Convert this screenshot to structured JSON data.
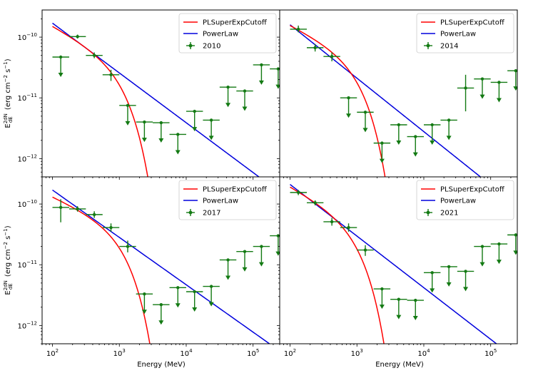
{
  "colors": {
    "cutoff": "#ff0000",
    "powerlaw": "#0000dd",
    "data": "#137a13"
  },
  "x_label": "Energy (MeV)",
  "y_label_main": "E",
  "y_label_sup": "2dN",
  "y_label_sub": "dE",
  "y_label_unit_parts": [
    "(erg cm",
    "−2",
    " s",
    "−1",
    ")"
  ],
  "x_ticks": [
    {
      "base": "10",
      "exp": "2",
      "value": 100
    },
    {
      "base": "10",
      "exp": "3",
      "value": 1000
    },
    {
      "base": "10",
      "exp": "4",
      "value": 10000
    },
    {
      "base": "10",
      "exp": "5",
      "value": 100000
    }
  ],
  "y_ticks": [
    {
      "base": "10",
      "exp": "−12",
      "value": 1e-12
    },
    {
      "base": "10",
      "exp": "−11",
      "value": 1e-11
    },
    {
      "base": "10",
      "exp": "−10",
      "value": 1e-10
    }
  ],
  "chart_data": [
    {
      "type": "scatter",
      "panel": "top-left",
      "x_scale": "log",
      "y_scale": "log",
      "xlim": [
        70,
        250000
      ],
      "ylim": [
        5e-13,
        2.8e-10
      ],
      "legend": {
        "placement": "top-right",
        "entries": [
          "PLSuperExpCutoff",
          "PowerLaw",
          "2010"
        ]
      },
      "curves": {
        "cutoff": {
          "prefactor": 1.5e-10,
          "index": 0.6,
          "cutoff": 1100,
          "exp_index": 1.5
        },
        "powerlaw": {
          "prefactor": 1.7e-10,
          "index": 0.82
        }
      },
      "points": [
        {
          "x": 133,
          "x_lo": 100,
          "x_hi": 178,
          "y": 4.7e-11,
          "ul": true
        },
        {
          "x": 237,
          "x_lo": 178,
          "x_hi": 316,
          "y": 1.02e-10,
          "ul": false,
          "y_lo": 9.5e-11,
          "y_hi": 1.1e-10
        },
        {
          "x": 422,
          "x_lo": 316,
          "x_hi": 562,
          "y": 5e-11,
          "ul": false,
          "y_lo": 4.5e-11,
          "y_hi": 5.6e-11
        },
        {
          "x": 750,
          "x_lo": 562,
          "x_hi": 1000,
          "y": 2.4e-11,
          "ul": false,
          "y_lo": 1.9e-11,
          "y_hi": 2.9e-11
        },
        {
          "x": 1334,
          "x_lo": 1000,
          "x_hi": 1778,
          "y": 7.5e-12,
          "ul": true
        },
        {
          "x": 2371,
          "x_lo": 1778,
          "x_hi": 3162,
          "y": 4e-12,
          "ul": true
        },
        {
          "x": 4217,
          "x_lo": 3162,
          "x_hi": 5623,
          "y": 3.9e-12,
          "ul": true
        },
        {
          "x": 7499,
          "x_lo": 5623,
          "x_hi": 10000,
          "y": 2.5e-12,
          "ul": true
        },
        {
          "x": 13335,
          "x_lo": 10000,
          "x_hi": 17783,
          "y": 6e-12,
          "ul": true
        },
        {
          "x": 23714,
          "x_lo": 17783,
          "x_hi": 31623,
          "y": 4.3e-12,
          "ul": true
        },
        {
          "x": 42170,
          "x_lo": 31623,
          "x_hi": 56234,
          "y": 1.5e-11,
          "ul": true
        },
        {
          "x": 74989,
          "x_lo": 56234,
          "x_hi": 100000,
          "y": 1.3e-11,
          "ul": true
        },
        {
          "x": 133352,
          "x_lo": 100000,
          "x_hi": 177828,
          "y": 3.5e-11,
          "ul": true
        },
        {
          "x": 237137,
          "x_lo": 177828,
          "x_hi": 316228,
          "y": 3e-11,
          "ul": true
        }
      ]
    },
    {
      "type": "scatter",
      "panel": "top-right",
      "x_scale": "log",
      "y_scale": "log",
      "xlim": [
        70,
        250000
      ],
      "ylim": [
        5e-13,
        2.8e-10
      ],
      "legend": {
        "placement": "top-right",
        "entries": [
          "PLSuperExpCutoff",
          "PowerLaw",
          "2014"
        ]
      },
      "curves": {
        "cutoff": {
          "prefactor": 1.55e-10,
          "index": 0.55,
          "cutoff": 1050,
          "exp_index": 1.5
        },
        "powerlaw": {
          "prefactor": 1.6e-10,
          "index": 0.88
        }
      },
      "points": [
        {
          "x": 133,
          "x_lo": 100,
          "x_hi": 178,
          "y": 1.35e-10,
          "ul": false,
          "y_lo": 1.2e-10,
          "y_hi": 1.55e-10
        },
        {
          "x": 237,
          "x_lo": 178,
          "x_hi": 316,
          "y": 6.7e-11,
          "ul": false,
          "y_lo": 5.8e-11,
          "y_hi": 7.7e-11
        },
        {
          "x": 422,
          "x_lo": 316,
          "x_hi": 562,
          "y": 4.8e-11,
          "ul": false,
          "y_lo": 4e-11,
          "y_hi": 5.6e-11
        },
        {
          "x": 750,
          "x_lo": 562,
          "x_hi": 1000,
          "y": 1e-11,
          "ul": true
        },
        {
          "x": 1334,
          "x_lo": 1000,
          "x_hi": 1778,
          "y": 5.8e-12,
          "ul": true
        },
        {
          "x": 2371,
          "x_lo": 1778,
          "x_hi": 3162,
          "y": 1.8e-12,
          "ul": true
        },
        {
          "x": 4217,
          "x_lo": 3162,
          "x_hi": 5623,
          "y": 3.6e-12,
          "ul": true
        },
        {
          "x": 7499,
          "x_lo": 5623,
          "x_hi": 10000,
          "y": 2.3e-12,
          "ul": true
        },
        {
          "x": 13335,
          "x_lo": 10000,
          "x_hi": 17783,
          "y": 3.6e-12,
          "ul": true
        },
        {
          "x": 23714,
          "x_lo": 17783,
          "x_hi": 31623,
          "y": 4.3e-12,
          "ul": true
        },
        {
          "x": 42170,
          "x_lo": 31623,
          "x_hi": 56234,
          "y": 1.45e-11,
          "ul": false,
          "y_lo": 6e-12,
          "y_hi": 2.4e-11
        },
        {
          "x": 74989,
          "x_lo": 56234,
          "x_hi": 100000,
          "y": 2.05e-11,
          "ul": true
        },
        {
          "x": 133352,
          "x_lo": 100000,
          "x_hi": 177828,
          "y": 1.8e-11,
          "ul": true
        },
        {
          "x": 237137,
          "x_lo": 177828,
          "x_hi": 316228,
          "y": 2.8e-11,
          "ul": true
        }
      ]
    },
    {
      "type": "scatter",
      "panel": "bottom-left",
      "x_scale": "log",
      "y_scale": "log",
      "xlim": [
        70,
        250000
      ],
      "ylim": [
        5e-13,
        2.8e-10
      ],
      "legend": {
        "placement": "top-right",
        "entries": [
          "PLSuperExpCutoff",
          "PowerLaw",
          "2017"
        ]
      },
      "curves": {
        "cutoff": {
          "prefactor": 1.3e-10,
          "index": 0.5,
          "cutoff": 1150,
          "exp_index": 1.5
        },
        "powerlaw": {
          "prefactor": 1.7e-10,
          "index": 0.78
        }
      },
      "points": [
        {
          "x": 133,
          "x_lo": 100,
          "x_hi": 178,
          "y": 8.8e-11,
          "ul": false,
          "y_lo": 5e-11,
          "y_hi": 1.2e-10
        },
        {
          "x": 237,
          "x_lo": 178,
          "x_hi": 316,
          "y": 8.3e-11,
          "ul": false,
          "y_lo": 7.5e-11,
          "y_hi": 9.2e-11
        },
        {
          "x": 422,
          "x_lo": 316,
          "x_hi": 562,
          "y": 6.7e-11,
          "ul": false,
          "y_lo": 5.9e-11,
          "y_hi": 7.6e-11
        },
        {
          "x": 750,
          "x_lo": 562,
          "x_hi": 1000,
          "y": 4.1e-11,
          "ul": false,
          "y_lo": 3.5e-11,
          "y_hi": 4.8e-11
        },
        {
          "x": 1334,
          "x_lo": 1000,
          "x_hi": 1778,
          "y": 2e-11,
          "ul": false,
          "y_lo": 1.6e-11,
          "y_hi": 2.5e-11
        },
        {
          "x": 2371,
          "x_lo": 1778,
          "x_hi": 3162,
          "y": 3.3e-12,
          "ul": true
        },
        {
          "x": 4217,
          "x_lo": 3162,
          "x_hi": 5623,
          "y": 2.2e-12,
          "ul": true
        },
        {
          "x": 7499,
          "x_lo": 5623,
          "x_hi": 10000,
          "y": 4.2e-12,
          "ul": true
        },
        {
          "x": 13335,
          "x_lo": 10000,
          "x_hi": 17783,
          "y": 3.6e-12,
          "ul": true
        },
        {
          "x": 23714,
          "x_lo": 17783,
          "x_hi": 31623,
          "y": 4.4e-12,
          "ul": true
        },
        {
          "x": 42170,
          "x_lo": 31623,
          "x_hi": 56234,
          "y": 1.2e-11,
          "ul": true
        },
        {
          "x": 74989,
          "x_lo": 56234,
          "x_hi": 100000,
          "y": 1.65e-11,
          "ul": true
        },
        {
          "x": 133352,
          "x_lo": 100000,
          "x_hi": 177828,
          "y": 2e-11,
          "ul": true
        },
        {
          "x": 237137,
          "x_lo": 177828,
          "x_hi": 316228,
          "y": 3e-11,
          "ul": true
        }
      ]
    },
    {
      "type": "scatter",
      "panel": "bottom-right",
      "x_scale": "log",
      "y_scale": "log",
      "xlim": [
        70,
        250000
      ],
      "ylim": [
        5e-13,
        2.8e-10
      ],
      "legend": {
        "placement": "top-right",
        "entries": [
          "PLSuperExpCutoff",
          "PowerLaw",
          "2021"
        ]
      },
      "curves": {
        "cutoff": {
          "prefactor": 1.9e-10,
          "index": 0.6,
          "cutoff": 1000,
          "exp_index": 1.5
        },
        "powerlaw": {
          "prefactor": 2.1e-10,
          "index": 0.85
        }
      },
      "points": [
        {
          "x": 133,
          "x_lo": 100,
          "x_hi": 178,
          "y": 1.55e-10,
          "ul": false,
          "y_lo": 1.4e-10,
          "y_hi": 1.7e-10
        },
        {
          "x": 237,
          "x_lo": 178,
          "x_hi": 316,
          "y": 1.05e-10,
          "ul": false,
          "y_lo": 9.5e-11,
          "y_hi": 1.15e-10
        },
        {
          "x": 422,
          "x_lo": 316,
          "x_hi": 562,
          "y": 5.1e-11,
          "ul": false,
          "y_lo": 4.4e-11,
          "y_hi": 5.9e-11
        },
        {
          "x": 750,
          "x_lo": 562,
          "x_hi": 1000,
          "y": 4.1e-11,
          "ul": false,
          "y_lo": 3.5e-11,
          "y_hi": 4.8e-11
        },
        {
          "x": 1334,
          "x_lo": 1000,
          "x_hi": 1778,
          "y": 1.75e-11,
          "ul": false,
          "y_lo": 1.4e-11,
          "y_hi": 2.1e-11
        },
        {
          "x": 2371,
          "x_lo": 1778,
          "x_hi": 3162,
          "y": 4e-12,
          "ul": true
        },
        {
          "x": 4217,
          "x_lo": 3162,
          "x_hi": 5623,
          "y": 2.7e-12,
          "ul": true
        },
        {
          "x": 7499,
          "x_lo": 5623,
          "x_hi": 10000,
          "y": 2.6e-12,
          "ul": true
        },
        {
          "x": 13335,
          "x_lo": 10000,
          "x_hi": 17783,
          "y": 7.4e-12,
          "ul": true
        },
        {
          "x": 23714,
          "x_lo": 17783,
          "x_hi": 31623,
          "y": 9.3e-12,
          "ul": true
        },
        {
          "x": 42170,
          "x_lo": 31623,
          "x_hi": 56234,
          "y": 7.8e-12,
          "ul": true
        },
        {
          "x": 74989,
          "x_lo": 56234,
          "x_hi": 100000,
          "y": 2e-11,
          "ul": true
        },
        {
          "x": 133352,
          "x_lo": 100000,
          "x_hi": 177828,
          "y": 2.2e-11,
          "ul": true
        },
        {
          "x": 237137,
          "x_lo": 177828,
          "x_hi": 316228,
          "y": 3.1e-11,
          "ul": true
        }
      ]
    }
  ]
}
